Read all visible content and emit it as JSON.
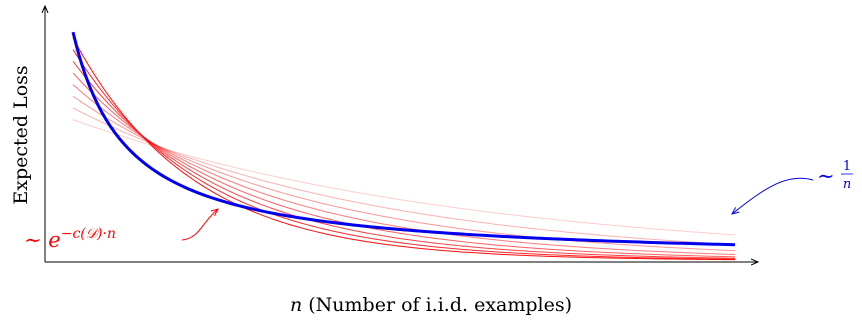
{
  "chart_data": {
    "type": "line",
    "title": "",
    "xlabel_var": "n",
    "xlabel": "(Number of i.i.d. examples)",
    "ylabel": "Expected Loss",
    "grid": false,
    "x_ticks": false,
    "y_ticks": false,
    "main_curve": {
      "color": "#0000ee",
      "form": "1/n",
      "annotation": {
        "prefix": "∼",
        "numerator": "1",
        "denominator": "n"
      }
    },
    "exponential_curves": {
      "color": "#ff0000",
      "count": 8,
      "form": "exp(-c·n)",
      "annotation": {
        "prefix": "∼",
        "base": "e",
        "exponent": "−c(𝒟)·n"
      }
    }
  }
}
